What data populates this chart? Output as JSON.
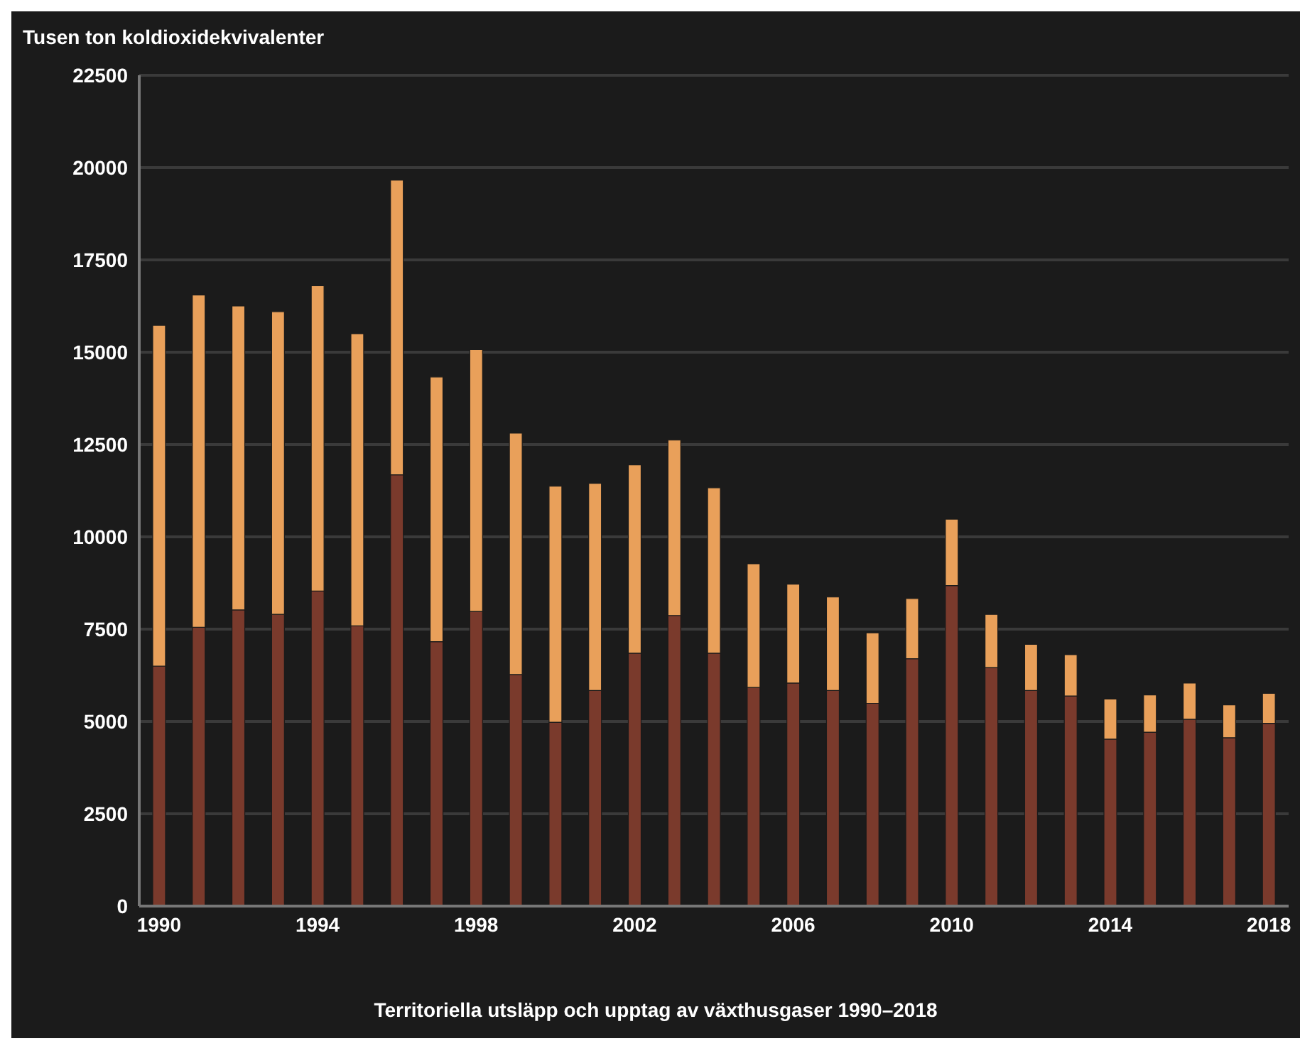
{
  "chart_data": {
    "type": "bar",
    "title": "Territoriella utsläpp och upptag av växthusgaser 1990–2018",
    "ylabel": "Tusen ton koldioxidekvivalenter",
    "categories": [
      "1990",
      null,
      null,
      null,
      "1994",
      null,
      null,
      null,
      "1998",
      null,
      null,
      null,
      "2002",
      null,
      null,
      null,
      "2006",
      null,
      null,
      null,
      "2010",
      null,
      null,
      null,
      "2014",
      null,
      null,
      null,
      "2018"
    ],
    "stacked": true,
    "series": [
      {
        "color": "#7a3a2c",
        "values": [
          6500,
          7550,
          8020,
          7900,
          8530,
          7590,
          11680,
          7160,
          7980,
          6270,
          4980,
          5840,
          6850,
          7870,
          6850,
          5920,
          6040,
          5840,
          5490,
          6700,
          8680,
          6460,
          5840,
          5690,
          4520,
          4710,
          5060,
          4560,
          4950
        ]
      },
      {
        "color": "#e9a05a",
        "values": [
          9230,
          9000,
          8230,
          8200,
          8270,
          7910,
          7980,
          7170,
          7090,
          6540,
          6390,
          5610,
          5100,
          4750,
          4480,
          3350,
          2680,
          2530,
          1910,
          1630,
          1800,
          1440,
          1250,
          1120,
          1090,
          1010,
          980,
          890,
          810
        ]
      }
    ],
    "ylim": [
      0,
      22500
    ],
    "yticks": [
      0,
      2500,
      5000,
      7500,
      10000,
      12500,
      15000,
      17500,
      20000,
      22500
    ],
    "grid": "y"
  }
}
